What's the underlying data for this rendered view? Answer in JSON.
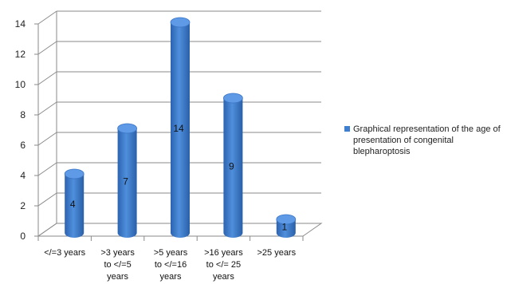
{
  "chart_data": {
    "type": "bar",
    "categories": [
      [
        "</=3 years"
      ],
      [
        ">3 years",
        "to </=5",
        "years"
      ],
      [
        ">5 years",
        "to </=16",
        "years"
      ],
      [
        ">16 years",
        "to </= 25",
        "years"
      ],
      [
        ">25 years"
      ]
    ],
    "values": [
      4,
      7,
      14,
      9,
      1
    ],
    "data_labels": [
      "4",
      "7",
      "14",
      "9",
      "1"
    ],
    "series": [
      {
        "name": "Graphical representation of the age of presentation of congenital blepharoptosis",
        "values": [
          4,
          7,
          14,
          9,
          1
        ]
      }
    ],
    "y_ticks": [
      "0",
      "2",
      "4",
      "6",
      "8",
      "10",
      "12",
      "14"
    ],
    "ylim": [
      0,
      14
    ],
    "grid": true,
    "style": "3d-cylinder",
    "bar_color": "#3f7fcf",
    "legend_position": "right"
  }
}
